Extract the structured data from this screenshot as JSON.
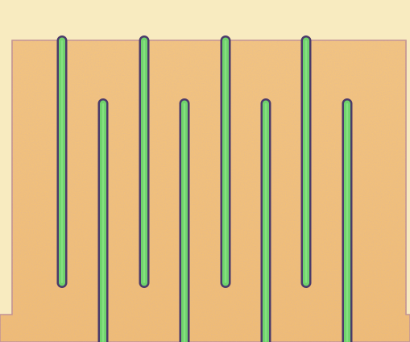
{
  "image": {
    "subject": "interdigitated-electrode-micrograph",
    "colors": {
      "background": "#f7e9bd",
      "pad": "#f2c07a",
      "pad_edge": "#b98a8e",
      "finger_fill": "#6fd36c",
      "finger_edge": "#4b3a6a"
    },
    "fingers": {
      "top_comb_count": 4,
      "bottom_comb_count": 4
    }
  }
}
